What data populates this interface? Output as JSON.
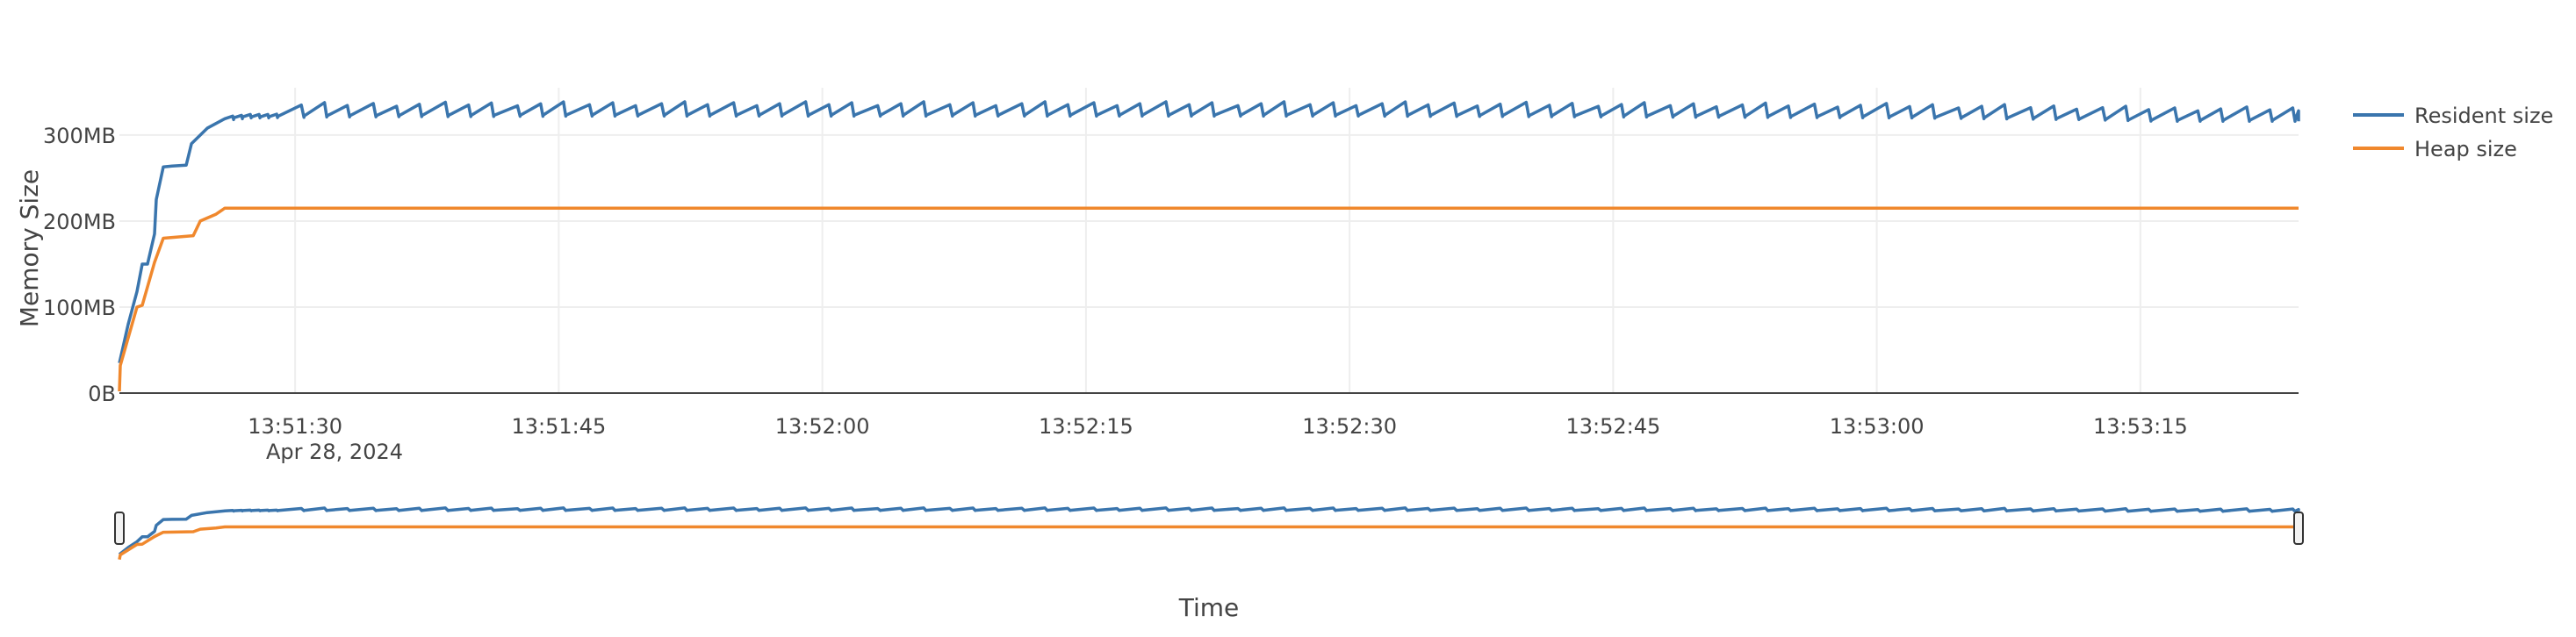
{
  "chart_data": {
    "type": "line",
    "title": "",
    "xlabel": "Time",
    "ylabel": "Memory Size",
    "date_label": "Apr 28, 2024",
    "x_range": [
      "13:51:20",
      "13:53:24"
    ],
    "y_range": [
      0,
      355
    ],
    "y_unit": "MB",
    "y_ticks": [
      {
        "value": 0,
        "label": "0B"
      },
      {
        "value": 100,
        "label": "100MB"
      },
      {
        "value": 200,
        "label": "200MB"
      },
      {
        "value": 300,
        "label": "300MB"
      }
    ],
    "x_ticks": [
      {
        "time": "13:51:30",
        "label": "13:51:30"
      },
      {
        "time": "13:51:45",
        "label": "13:51:45"
      },
      {
        "time": "13:52:00",
        "label": "13:52:00"
      },
      {
        "time": "13:52:15",
        "label": "13:52:15"
      },
      {
        "time": "13:52:30",
        "label": "13:52:30"
      },
      {
        "time": "13:52:45",
        "label": "13:52:45"
      },
      {
        "time": "13:53:00",
        "label": "13:53:00"
      },
      {
        "time": "13:53:15",
        "label": "13:53:15"
      }
    ],
    "grid": true,
    "legend_position": "right",
    "range_slider": true,
    "series": [
      {
        "name": "Resident size",
        "color": "#3a75ad",
        "points": [
          [
            "13:51:20.0",
            35
          ],
          [
            "13:51:20.5",
            80
          ],
          [
            "13:51:21.0",
            118
          ],
          [
            "13:51:21.3",
            150
          ],
          [
            "13:51:21.6",
            150
          ],
          [
            "13:51:22.0",
            185
          ],
          [
            "13:51:22.1",
            225
          ],
          [
            "13:51:22.5",
            263
          ],
          [
            "13:51:23.0",
            264
          ],
          [
            "13:51:23.8",
            265
          ],
          [
            "13:51:24.1",
            290
          ],
          [
            "13:51:25.0",
            308
          ],
          [
            "13:51:26.0",
            320
          ],
          [
            "13:51:27.0",
            322
          ],
          [
            "13:51:28.0",
            322
          ],
          [
            "13:51:30.0",
            323
          ],
          [
            "13:51:45.0",
            324
          ],
          [
            "13:52:00.0",
            324
          ],
          [
            "13:52:15.0",
            324
          ],
          [
            "13:52:30.0",
            324
          ],
          [
            "13:52:45.0",
            323
          ],
          [
            "13:53:00.0",
            322
          ],
          [
            "13:53:10.0",
            320
          ],
          [
            "13:53:15.0",
            318
          ],
          [
            "13:53:24.0",
            318
          ]
        ],
        "sawtooth": {
          "start": "13:51:26",
          "end": "13:53:24",
          "low": 320,
          "high": 334
        }
      },
      {
        "name": "Heap size",
        "color": "#f0882d",
        "points": [
          [
            "13:51:20.0",
            2
          ],
          [
            "13:51:20.05",
            32
          ],
          [
            "13:51:21.0",
            100
          ],
          [
            "13:51:21.3",
            102
          ],
          [
            "13:51:22.0",
            152
          ],
          [
            "13:51:22.5",
            180
          ],
          [
            "13:51:24.2",
            183
          ],
          [
            "13:51:24.6",
            200
          ],
          [
            "13:51:25.5",
            208
          ],
          [
            "13:51:26.0",
            215
          ],
          [
            "13:51:30.0",
            215
          ],
          [
            "13:53:24.0",
            215
          ]
        ]
      }
    ]
  }
}
